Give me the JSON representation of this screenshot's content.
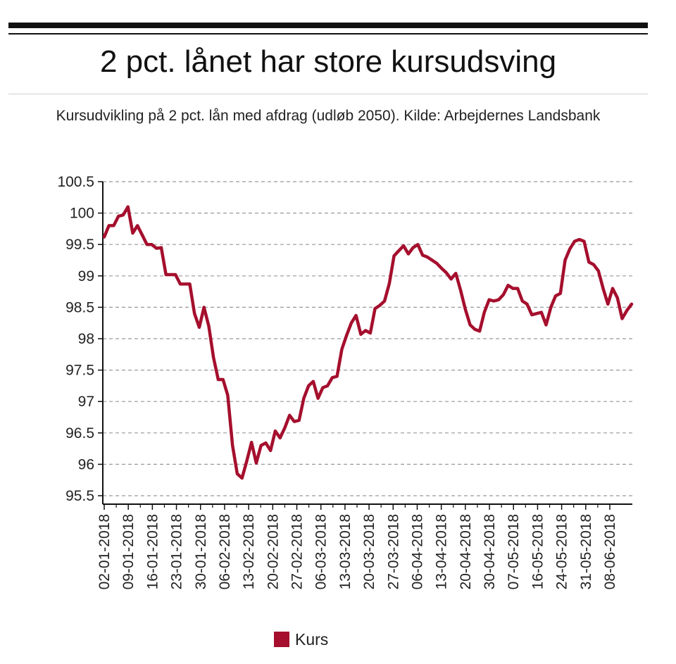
{
  "header": {
    "title": "2 pct. lånet har store kursudsving",
    "subtitle": "Kursudvikling på 2 pct. lån med afdrag (udløb 2050). Kilde: Arbejdernes Landsbank"
  },
  "colors": {
    "series": "#a50f2d",
    "grid": "#999999",
    "axis": "#111111"
  },
  "chart_data": {
    "type": "line",
    "title": "2 pct. lånet har store kursudsving",
    "subtitle": "Kursudvikling på 2 pct. lån med afdrag (udløb 2050). Kilde: Arbejdernes Landsbank",
    "xlabel": "",
    "ylabel": "",
    "ylim": [
      95.5,
      100.5
    ],
    "yticks": [
      "95.5",
      "96",
      "96.5",
      "97",
      "97.5",
      "98",
      "98.5",
      "99",
      "99.5",
      "100",
      "100.5"
    ],
    "xticks": [
      "02-01-2018",
      "09-01-2018",
      "16-01-2018",
      "23-01-2018",
      "30-01-2018",
      "06-02-2018",
      "13-02-2018",
      "20-02-2018",
      "27-02-2018",
      "06-03-2018",
      "13-03-2018",
      "20-03-2018",
      "27-03-2018",
      "06-04-2018",
      "13-04-2018",
      "20-04-2018",
      "30-04-2018",
      "07-05-2018",
      "16-05-2018",
      "24-05-2018",
      "31-05-2018",
      "08-06-2018"
    ],
    "grid": "horizontal dashed",
    "legend_position": "bottom",
    "series": [
      {
        "name": "Kurs",
        "color": "#a50f2d",
        "values": [
          99.62,
          99.8,
          99.8,
          99.95,
          99.97,
          100.1,
          99.68,
          99.8,
          99.65,
          99.5,
          99.5,
          99.44,
          99.45,
          99.02,
          99.02,
          99.02,
          98.87,
          98.87,
          98.87,
          98.4,
          98.18,
          98.5,
          98.2,
          97.7,
          97.35,
          97.35,
          97.1,
          96.3,
          95.85,
          95.78,
          96.05,
          96.35,
          96.02,
          96.3,
          96.34,
          96.22,
          96.53,
          96.42,
          96.58,
          96.78,
          96.68,
          96.7,
          97.05,
          97.25,
          97.32,
          97.05,
          97.22,
          97.25,
          97.38,
          97.4,
          97.83,
          98.05,
          98.25,
          98.37,
          98.07,
          98.13,
          98.09,
          98.48,
          98.53,
          98.6,
          98.88,
          99.32,
          99.4,
          99.48,
          99.35,
          99.45,
          99.5,
          99.33,
          99.3,
          99.25,
          99.2,
          99.12,
          99.05,
          98.95,
          99.04,
          98.77,
          98.47,
          98.22,
          98.15,
          98.12,
          98.42,
          98.62,
          98.6,
          98.62,
          98.7,
          98.85,
          98.8,
          98.8,
          98.6,
          98.55,
          98.38,
          98.4,
          98.42,
          98.22,
          98.5,
          98.68,
          98.72,
          99.25,
          99.43,
          99.55,
          99.58,
          99.55,
          99.22,
          99.18,
          99.08,
          98.8,
          98.55,
          98.8,
          98.65,
          98.32,
          98.45,
          98.55
        ]
      }
    ]
  }
}
